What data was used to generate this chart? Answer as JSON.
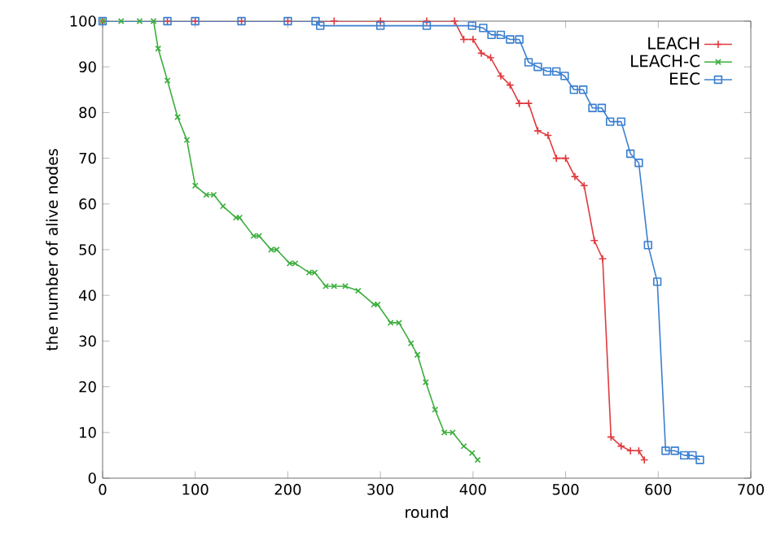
{
  "chart_data": {
    "type": "line",
    "xlabel": "round",
    "ylabel": "the number of alive nodes",
    "xlim": [
      0,
      700
    ],
    "ylim": [
      0,
      100
    ],
    "xticks": [
      0,
      100,
      200,
      300,
      400,
      500,
      600,
      700
    ],
    "yticks": [
      0,
      10,
      20,
      30,
      40,
      50,
      60,
      70,
      80,
      90,
      100
    ],
    "grid": false,
    "legend": "top right",
    "line_style": "solid",
    "series": [
      {
        "name": "LEACH",
        "color": "#e03a3e",
        "marker": "plus",
        "x": [
          0,
          70,
          100,
          150,
          200,
          250,
          300,
          350,
          380,
          390,
          400,
          409,
          419,
          430,
          440,
          450,
          460,
          470,
          481,
          490,
          500,
          510,
          520,
          531,
          540,
          549,
          560,
          570,
          579,
          585
        ],
        "values": [
          100,
          100,
          100,
          100,
          100,
          100,
          100,
          100,
          100,
          96,
          96,
          93,
          92,
          88,
          86,
          82,
          82,
          76,
          75,
          70,
          70,
          66,
          64,
          52,
          48,
          9,
          7,
          6,
          6,
          4
        ]
      },
      {
        "name": "LEACH-C",
        "color": "#3cae3c",
        "marker": "cross",
        "x": [
          0,
          20,
          40,
          55,
          60,
          70,
          81,
          91,
          100,
          112,
          120,
          130,
          144,
          148,
          163,
          169,
          182,
          188,
          202,
          208,
          223,
          229,
          241,
          250,
          262,
          276,
          293,
          297,
          311,
          320,
          333,
          340,
          349,
          359,
          369,
          378,
          390,
          399,
          405
        ],
        "values": [
          100,
          100,
          100,
          100,
          94,
          87,
          79,
          74,
          64,
          62,
          62,
          59.5,
          57,
          57,
          53,
          53,
          50,
          50,
          47,
          47,
          45,
          45,
          42,
          42,
          42,
          41,
          38,
          38,
          34,
          34,
          29.5,
          27,
          21,
          15,
          10,
          10,
          7,
          5.5,
          4
        ]
      },
      {
        "name": "EEC",
        "color": "#3a7fd0",
        "marker": "square",
        "x": [
          0,
          70,
          100,
          150,
          200,
          230,
          235,
          300,
          350,
          399,
          411,
          420,
          430,
          440,
          450,
          460,
          470,
          480,
          490,
          499,
          509,
          519,
          529,
          539,
          548,
          560,
          570,
          579,
          589,
          599,
          608,
          618,
          628,
          637,
          645
        ],
        "values": [
          100,
          100,
          100,
          100,
          100,
          100,
          99,
          99,
          99,
          99,
          98.5,
          97,
          97,
          96,
          96,
          91,
          90,
          89,
          89,
          88,
          85,
          85,
          81,
          81,
          78,
          78,
          71,
          69,
          51,
          43,
          6,
          6,
          5,
          5,
          4
        ]
      }
    ]
  }
}
